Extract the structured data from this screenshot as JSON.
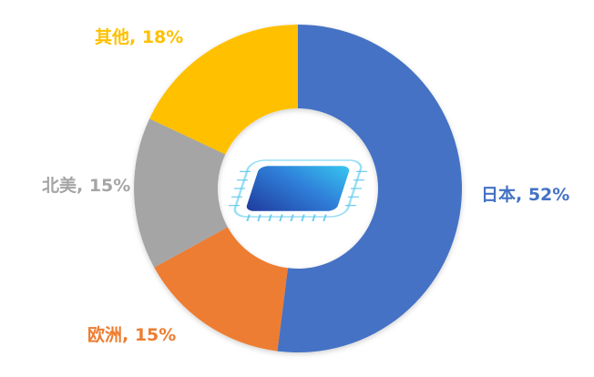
{
  "chart_data": {
    "type": "pie",
    "variant": "donut",
    "categories": [
      "日本",
      "欧洲",
      "北美",
      "其他"
    ],
    "values": [
      52,
      15,
      15,
      18
    ],
    "labels": [
      "日本, 52%",
      "欧洲, 15%",
      "北美, 15%",
      "其他, 18%"
    ],
    "colors": [
      "#4472C4",
      "#ED7D31",
      "#A5A5A5",
      "#FFC000"
    ],
    "center_icon": "microchip-icon",
    "legend": "none"
  }
}
